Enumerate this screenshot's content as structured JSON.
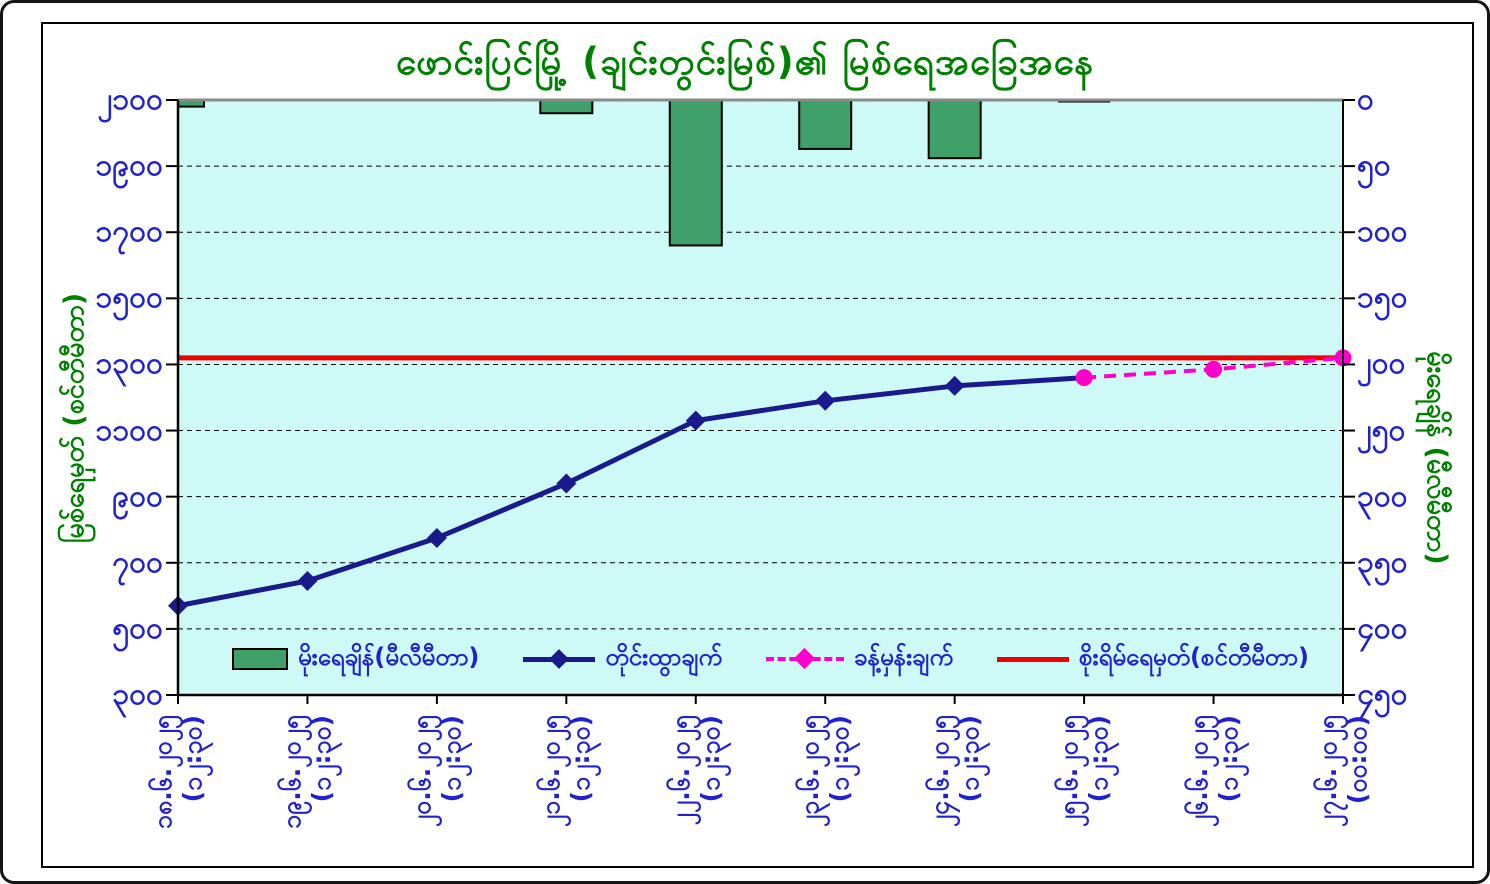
{
  "window": {
    "frame_color": "#141414",
    "background": "#ffffff"
  },
  "chart_data": {
    "type": "combo-bar-line",
    "title": "ဖောင်းပြင်မြို့ (ချင်းတွင်းမြစ်)၏ မြစ်ရေအခြေအနေ",
    "title_color": "#008000",
    "plot_bg": "#cdf9f6",
    "gridlines": {
      "color": "#000000",
      "style": "dashed",
      "orientation": "horizontal"
    },
    "legend_position": "bottom-inside",
    "categories": [
      {
        "date": "၁၈.၆.၂၀၂၅",
        "time": "(၁၂:၃၀)"
      },
      {
        "date": "၁၉.၆.၂၀၂၅",
        "time": "(၁၂:၃၀)"
      },
      {
        "date": "၂၀.၆.၂၀၂၅",
        "time": "(၁၂:၃၀)"
      },
      {
        "date": "၂၁.၆.၂၀၂၅",
        "time": "(၁၂:၃၀)"
      },
      {
        "date": "၂၂.၆.၂၀၂၅",
        "time": "(၁၂:၃၀)"
      },
      {
        "date": "၂၃.၆.၂၀၂၅",
        "time": "(၁၂:၃၀)"
      },
      {
        "date": "၂၄.၆.၂၀၂၅",
        "time": "(၁၂:၃၀)"
      },
      {
        "date": "၂၅.၆.၂၀၂၅",
        "time": "(၁၂:၃၀)"
      },
      {
        "date": "၂၆.၆.၂၀၂၅",
        "time": "(၁၂:၃၀)"
      },
      {
        "date": "၂၇.၆.၂၀၂၅",
        "time": "(၀၀:၀၀)"
      }
    ],
    "series": [
      {
        "name": "မိုးရေချိန်(မီလီမီတာ)",
        "type": "bar",
        "axis": "right",
        "color": "#3fa069",
        "border": "#000000",
        "values": [
          5,
          null,
          null,
          10,
          110,
          37,
          44,
          0,
          null,
          null
        ]
      },
      {
        "name": "တိုင်းထွာချက်",
        "type": "line",
        "axis": "left",
        "marker": "diamond",
        "color": "#1a1a8c",
        "values": [
          570,
          645,
          775,
          940,
          1130,
          1190,
          1235,
          1260,
          null,
          null
        ]
      },
      {
        "name": "ခန့်မှန်းချက်",
        "type": "dashed-line",
        "axis": "left",
        "marker": "circle",
        "color": "#ff00cc",
        "values": [
          null,
          null,
          null,
          null,
          null,
          null,
          null,
          1260,
          1285,
          1320
        ]
      },
      {
        "name": "စိုးရိမ်ရေမှတ်(စင်တီမီတာ)",
        "type": "constant-line",
        "axis": "left",
        "color": "#ee0000",
        "value": 1320
      }
    ],
    "left_axis": {
      "title": "မြစ်ရေမှတ် (စင်တီမီတာ)",
      "min": 300,
      "max": 2100,
      "step": 200,
      "tick_labels": [
        "၂၁၀၀",
        "၁၉၀၀",
        "၁၇၀၀",
        "၁၅၀၀",
        "၁၃၀၀",
        "၁၁၀၀",
        "၉၀၀",
        "၇၀၀",
        "၅၀၀",
        "၃၀၀"
      ],
      "label_color": "#2222cc",
      "title_color": "#008000"
    },
    "right_axis": {
      "title": "မိုးရေချိန် (မီလီမီတာ)",
      "min": 0,
      "max": 450,
      "step": 50,
      "direction": "downward",
      "tick_labels": [
        "၀",
        "၅၀",
        "၁၀၀",
        "၁၅၀",
        "၂၀၀",
        "၂၅၀",
        "၃၀၀",
        "၃၅၀",
        "၄၀၀",
        "၄၅၀"
      ],
      "label_color": "#2222cc",
      "title_color": "#008000"
    }
  }
}
